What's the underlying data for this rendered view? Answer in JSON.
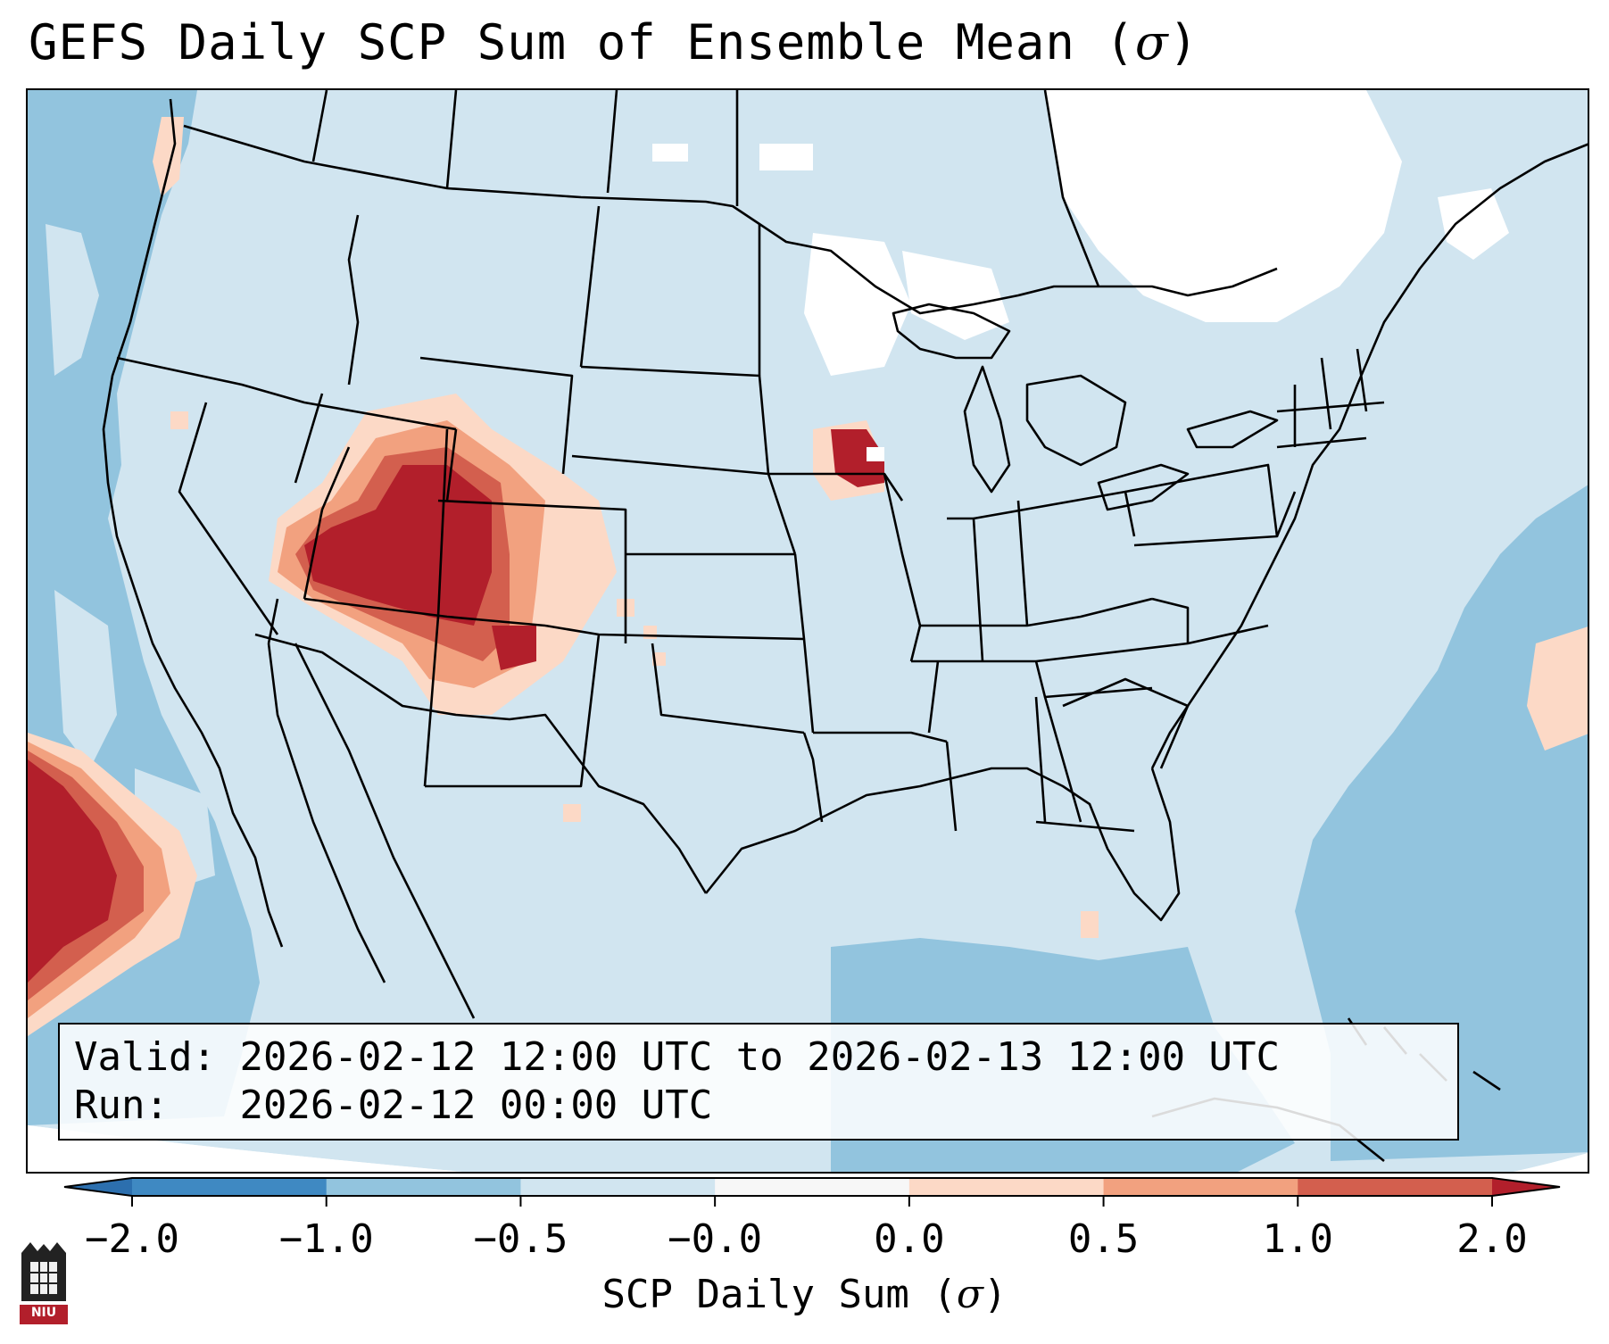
{
  "title": {
    "text": "GEFS Daily SCP Sum of Ensemble Mean (",
    "symbol": "σ",
    "close": ")"
  },
  "info": {
    "valid_label": "Valid:",
    "valid_value": "2026-02-12 12:00 UTC to 2026-02-13 12:00 UTC",
    "run_label": "Run:",
    "run_value": "2026-02-12 00:00 UTC"
  },
  "colorbar": {
    "label_text": "SCP Daily Sum (",
    "label_symbol": "σ",
    "label_close": ")",
    "ticks": [
      "−2.0",
      "−1.0",
      "−0.5",
      "−0.0",
      "0.0",
      "0.5",
      "1.0",
      "2.0"
    ],
    "bins": [
      {
        "color": "#3f89c2"
      },
      {
        "color": "#92c4de"
      },
      {
        "color": "#d1e5f0"
      },
      {
        "color": "#f7f7f7"
      },
      {
        "color": "#fcd9c6"
      },
      {
        "color": "#f2a17f"
      },
      {
        "color": "#d35f4e"
      }
    ],
    "extend_low_color": "#2c6fae",
    "extend_high_color": "#b21f2b"
  },
  "logo": {
    "text": "NIU"
  },
  "colors": {
    "neutral_blue": "#d1e5f0",
    "medium_blue": "#92c4de",
    "white": "#ffffff",
    "light_red": "#fcd9c6",
    "mid_red": "#f2a17f",
    "red": "#d35f4e",
    "dark_red": "#b21f2b"
  }
}
